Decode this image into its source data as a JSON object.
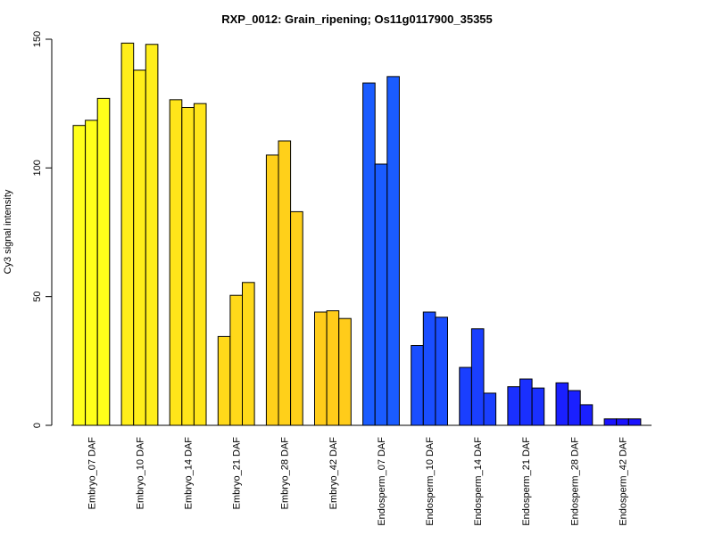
{
  "chart_data": {
    "type": "bar",
    "title": "RXP_0012: Grain_ripening; Os11g0117900_35355",
    "xlabel": "",
    "ylabel": "Cy3 signal intensity",
    "ylim": [
      0,
      150
    ],
    "yticks": [
      "0",
      "50",
      "100",
      "150"
    ],
    "grid": false,
    "legend": "none",
    "categories": [
      "Embryo_07 DAF",
      "Embryo_10 DAF",
      "Embryo_14 DAF",
      "Embryo_21 DAF",
      "Embryo_28 DAF",
      "Embryo_42 DAF",
      "Endosperm_07 DAF",
      "Endosperm_10 DAF",
      "Endosperm_14 DAF",
      "Endosperm_21 DAF",
      "Endosperm_28 DAF",
      "Endosperm_42 DAF"
    ],
    "replicates_per_category": 3,
    "values": [
      [
        116.5,
        118.5,
        127.0
      ],
      [
        148.5,
        138.0,
        148.0
      ],
      [
        126.5,
        123.5,
        125.0
      ],
      [
        34.5,
        50.5,
        55.5
      ],
      [
        105.0,
        110.5,
        83.0
      ],
      [
        44.0,
        44.5,
        41.5
      ],
      [
        133.0,
        101.5,
        135.5
      ],
      [
        31.0,
        44.0,
        42.0
      ],
      [
        22.5,
        37.5,
        12.5
      ],
      [
        15.0,
        18.0,
        14.5
      ],
      [
        16.5,
        13.5,
        8.0
      ],
      [
        2.5,
        2.5,
        2.5
      ]
    ],
    "colors": [
      "#ffff1a",
      "#ffee1a",
      "#ffe51a",
      "#ffd91a",
      "#ffd01a",
      "#ffcc1a",
      "#1a5cff",
      "#1a4eff",
      "#1a3fff",
      "#1a30ff",
      "#1a20ff",
      "#1a12ff"
    ]
  }
}
